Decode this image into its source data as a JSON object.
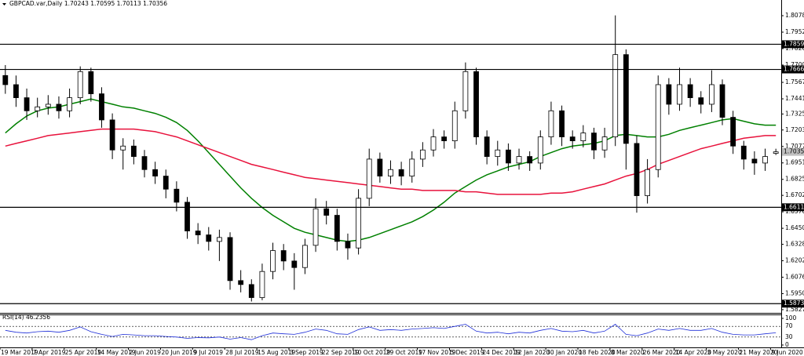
{
  "chart_data": [
    {
      "type": "candlestick",
      "title": "GBPCAD.var,Daily  1.70243 1.70595 1.70113 1.70356",
      "categories": [
        "19 Mar 2019",
        null,
        null,
        "7 Apr 2019",
        null,
        null,
        "25 Apr 2019",
        null,
        null,
        "14 May 2019",
        null,
        null,
        "2 Jun 2019",
        null,
        null,
        "20 Jun 2019",
        null,
        null,
        "9 Jul 2019",
        null,
        null,
        "28 Jul 2019",
        null,
        null,
        "15 Aug 2019",
        null,
        null,
        "3 Sep 2019",
        null,
        null,
        "22 Sep 2019",
        null,
        null,
        "10 Oct 2019",
        null,
        null,
        "29 Oct 2019",
        null,
        null,
        "17 Nov 2019",
        null,
        null,
        "5 Dec 2019",
        null,
        null,
        "24 Dec 2019",
        null,
        null,
        "12 Jan 2020",
        null,
        null,
        "30 Jan 2020",
        null,
        null,
        "18 Feb 2020",
        null,
        null,
        "8 Mar 2020",
        null,
        null,
        "26 Mar 2020",
        null,
        null,
        "14 Apr 2020",
        null,
        null,
        "3 May 2020",
        null,
        null,
        "21 May 2020",
        null,
        null,
        "9 Jun 2020"
      ],
      "open": [
        1.762,
        1.755,
        1.745,
        1.735,
        1.738,
        1.74,
        1.735,
        1.745,
        1.765,
        1.748,
        1.728,
        1.705,
        1.708,
        1.7,
        1.69,
        1.685,
        1.675,
        1.665,
        1.643,
        1.64,
        1.635,
        1.638,
        1.605,
        1.602,
        1.592,
        1.612,
        1.628,
        1.62,
        1.615,
        1.632,
        1.66,
        1.655,
        1.635,
        1.63,
        1.668,
        1.698,
        1.685,
        1.69,
        1.685,
        1.698,
        1.705,
        1.715,
        1.712,
        1.735,
        1.765,
        1.715,
        1.7,
        1.705,
        1.695,
        1.7,
        1.695,
        1.715,
        1.735,
        1.715,
        1.712,
        1.718,
        1.705,
        1.715,
        1.778,
        1.71,
        1.67,
        1.69,
        1.755,
        1.74,
        1.755,
        1.745,
        1.74,
        1.755,
        1.73,
        1.708,
        1.698,
        1.695,
        1.70243
      ],
      "high": [
        1.77,
        1.762,
        1.752,
        1.745,
        1.747,
        1.746,
        1.752,
        1.769,
        1.768,
        1.753,
        1.733,
        1.714,
        1.713,
        1.705,
        1.696,
        1.69,
        1.681,
        1.669,
        1.649,
        1.646,
        1.644,
        1.642,
        1.613,
        1.606,
        1.618,
        1.634,
        1.633,
        1.626,
        1.637,
        1.668,
        1.666,
        1.66,
        1.641,
        1.675,
        1.706,
        1.703,
        1.697,
        1.696,
        1.704,
        1.711,
        1.721,
        1.72,
        1.742,
        1.772,
        1.768,
        1.72,
        1.712,
        1.71,
        1.706,
        1.704,
        1.72,
        1.742,
        1.739,
        1.72,
        1.724,
        1.722,
        1.722,
        1.808,
        1.782,
        1.716,
        1.698,
        1.762,
        1.76,
        1.768,
        1.76,
        1.75,
        1.766,
        1.759,
        1.735,
        1.712,
        1.704,
        1.706,
        1.70595
      ],
      "low": [
        1.748,
        1.738,
        1.728,
        1.73,
        1.732,
        1.729,
        1.73,
        1.74,
        1.742,
        1.722,
        1.698,
        1.69,
        1.694,
        1.684,
        1.679,
        1.668,
        1.658,
        1.637,
        1.633,
        1.628,
        1.62,
        1.598,
        1.596,
        1.589,
        1.59,
        1.606,
        1.613,
        1.598,
        1.61,
        1.627,
        1.648,
        1.628,
        1.621,
        1.625,
        1.662,
        1.68,
        1.679,
        1.678,
        1.68,
        1.692,
        1.7,
        1.706,
        1.706,
        1.729,
        1.709,
        1.694,
        1.693,
        1.689,
        1.69,
        1.689,
        1.69,
        1.709,
        1.708,
        1.706,
        1.707,
        1.698,
        1.699,
        1.708,
        1.69,
        1.657,
        1.664,
        1.684,
        1.732,
        1.735,
        1.738,
        1.733,
        1.734,
        1.724,
        1.702,
        1.69,
        1.686,
        1.689,
        1.70113
      ],
      "close": [
        1.755,
        1.745,
        1.735,
        1.738,
        1.74,
        1.735,
        1.745,
        1.765,
        1.748,
        1.728,
        1.705,
        1.708,
        1.7,
        1.69,
        1.685,
        1.675,
        1.665,
        1.643,
        1.64,
        1.635,
        1.638,
        1.605,
        1.602,
        1.592,
        1.612,
        1.628,
        1.62,
        1.615,
        1.632,
        1.66,
        1.655,
        1.635,
        1.63,
        1.668,
        1.698,
        1.685,
        1.69,
        1.685,
        1.698,
        1.705,
        1.715,
        1.712,
        1.735,
        1.765,
        1.715,
        1.7,
        1.705,
        1.695,
        1.7,
        1.695,
        1.715,
        1.735,
        1.715,
        1.712,
        1.718,
        1.705,
        1.715,
        1.778,
        1.71,
        1.67,
        1.69,
        1.755,
        1.74,
        1.755,
        1.745,
        1.74,
        1.755,
        1.73,
        1.708,
        1.698,
        1.695,
        1.7,
        1.70356
      ],
      "up_color": "#ffffff",
      "down_color": "#000000",
      "moving_averages": [
        {
          "color": "#008000",
          "values": [
            1.718,
            1.725,
            1.731,
            1.735,
            1.737,
            1.738,
            1.74,
            1.742,
            1.744,
            1.742,
            1.74,
            1.738,
            1.737,
            1.735,
            1.733,
            1.73,
            1.726,
            1.72,
            1.712,
            1.703,
            1.694,
            1.685,
            1.676,
            1.668,
            1.661,
            1.655,
            1.65,
            1.645,
            1.642,
            1.64,
            1.638,
            1.636,
            1.635,
            1.636,
            1.638,
            1.641,
            1.644,
            1.647,
            1.65,
            1.654,
            1.659,
            1.665,
            1.672,
            1.677,
            1.682,
            1.686,
            1.689,
            1.692,
            1.694,
            1.696,
            1.7,
            1.703,
            1.706,
            1.708,
            1.709,
            1.71,
            1.712,
            1.716,
            1.717,
            1.716,
            1.715,
            1.715,
            1.717,
            1.72,
            1.722,
            1.724,
            1.726,
            1.728,
            1.729,
            1.727,
            1.725,
            1.724,
            1.724
          ]
        },
        {
          "color": "#e8123c",
          "values": [
            1.708,
            1.71,
            1.712,
            1.714,
            1.716,
            1.717,
            1.718,
            1.719,
            1.72,
            1.721,
            1.721,
            1.721,
            1.721,
            1.72,
            1.719,
            1.717,
            1.715,
            1.712,
            1.709,
            1.706,
            1.703,
            1.7,
            1.697,
            1.694,
            1.692,
            1.69,
            1.688,
            1.686,
            1.684,
            1.683,
            1.682,
            1.681,
            1.68,
            1.679,
            1.678,
            1.677,
            1.676,
            1.675,
            1.675,
            1.674,
            1.674,
            1.674,
            1.674,
            1.673,
            1.673,
            1.672,
            1.671,
            1.671,
            1.671,
            1.671,
            1.671,
            1.672,
            1.672,
            1.673,
            1.675,
            1.677,
            1.679,
            1.682,
            1.685,
            1.687,
            1.69,
            1.694,
            1.697,
            1.7,
            1.703,
            1.706,
            1.708,
            1.71,
            1.712,
            1.714,
            1.715,
            1.716,
            1.716
          ]
        }
      ],
      "levels": [
        1.78594,
        1.76665,
        1.66113,
        1.58737
      ],
      "last_price": 1.70356,
      "ylim": [
        1.5815,
        1.8138
      ],
      "yticks": [
        {
          "value": 1.8078,
          "label": "1.80780"
        },
        {
          "value": 1.7952,
          "label": "1.79520"
        },
        {
          "value": 1.7826,
          "label": "1.78260"
        },
        {
          "value": 1.77,
          "label": "1.77000"
        },
        {
          "value": 1.75675,
          "label": "1.75675"
        },
        {
          "value": 1.74415,
          "label": "1.74415"
        },
        {
          "value": 1.73255,
          "label": "1.73255"
        },
        {
          "value": 1.7203,
          "label": "1.72030"
        },
        {
          "value": 1.7077,
          "label": "1.70770"
        },
        {
          "value": 1.6951,
          "label": "1.69510"
        },
        {
          "value": 1.6825,
          "label": "1.68250"
        },
        {
          "value": 1.67025,
          "label": "1.67025"
        },
        {
          "value": 1.65765,
          "label": "1.65765"
        },
        {
          "value": 1.64505,
          "label": "1.64505"
        },
        {
          "value": 1.6328,
          "label": "1.63280"
        },
        {
          "value": 1.6202,
          "label": "1.62020"
        },
        {
          "value": 1.6076,
          "label": "1.60760"
        },
        {
          "value": 1.595,
          "label": "1.59500"
        },
        {
          "value": 1.58275,
          "label": "1.58275"
        }
      ]
    },
    {
      "type": "line",
      "title": "RSI(14) 46.2356",
      "color": "#1e2ed8",
      "values": [
        55,
        48,
        45,
        50,
        52,
        48,
        55,
        68,
        50,
        40,
        32,
        40,
        38,
        35,
        35,
        32,
        30,
        25,
        28,
        27,
        30,
        22,
        28,
        20,
        35,
        45,
        42,
        40,
        48,
        60,
        55,
        42,
        40,
        58,
        68,
        55,
        58,
        55,
        60,
        62,
        65,
        62,
        70,
        78,
        52,
        45,
        48,
        42,
        48,
        45,
        55,
        62,
        52,
        50,
        55,
        45,
        52,
        78,
        40,
        35,
        45,
        60,
        55,
        62,
        55,
        55,
        62,
        48,
        40,
        38,
        38,
        42,
        46
      ],
      "ylim": [
        0,
        100
      ],
      "yticks": [
        100,
        70,
        30,
        0
      ]
    }
  ]
}
